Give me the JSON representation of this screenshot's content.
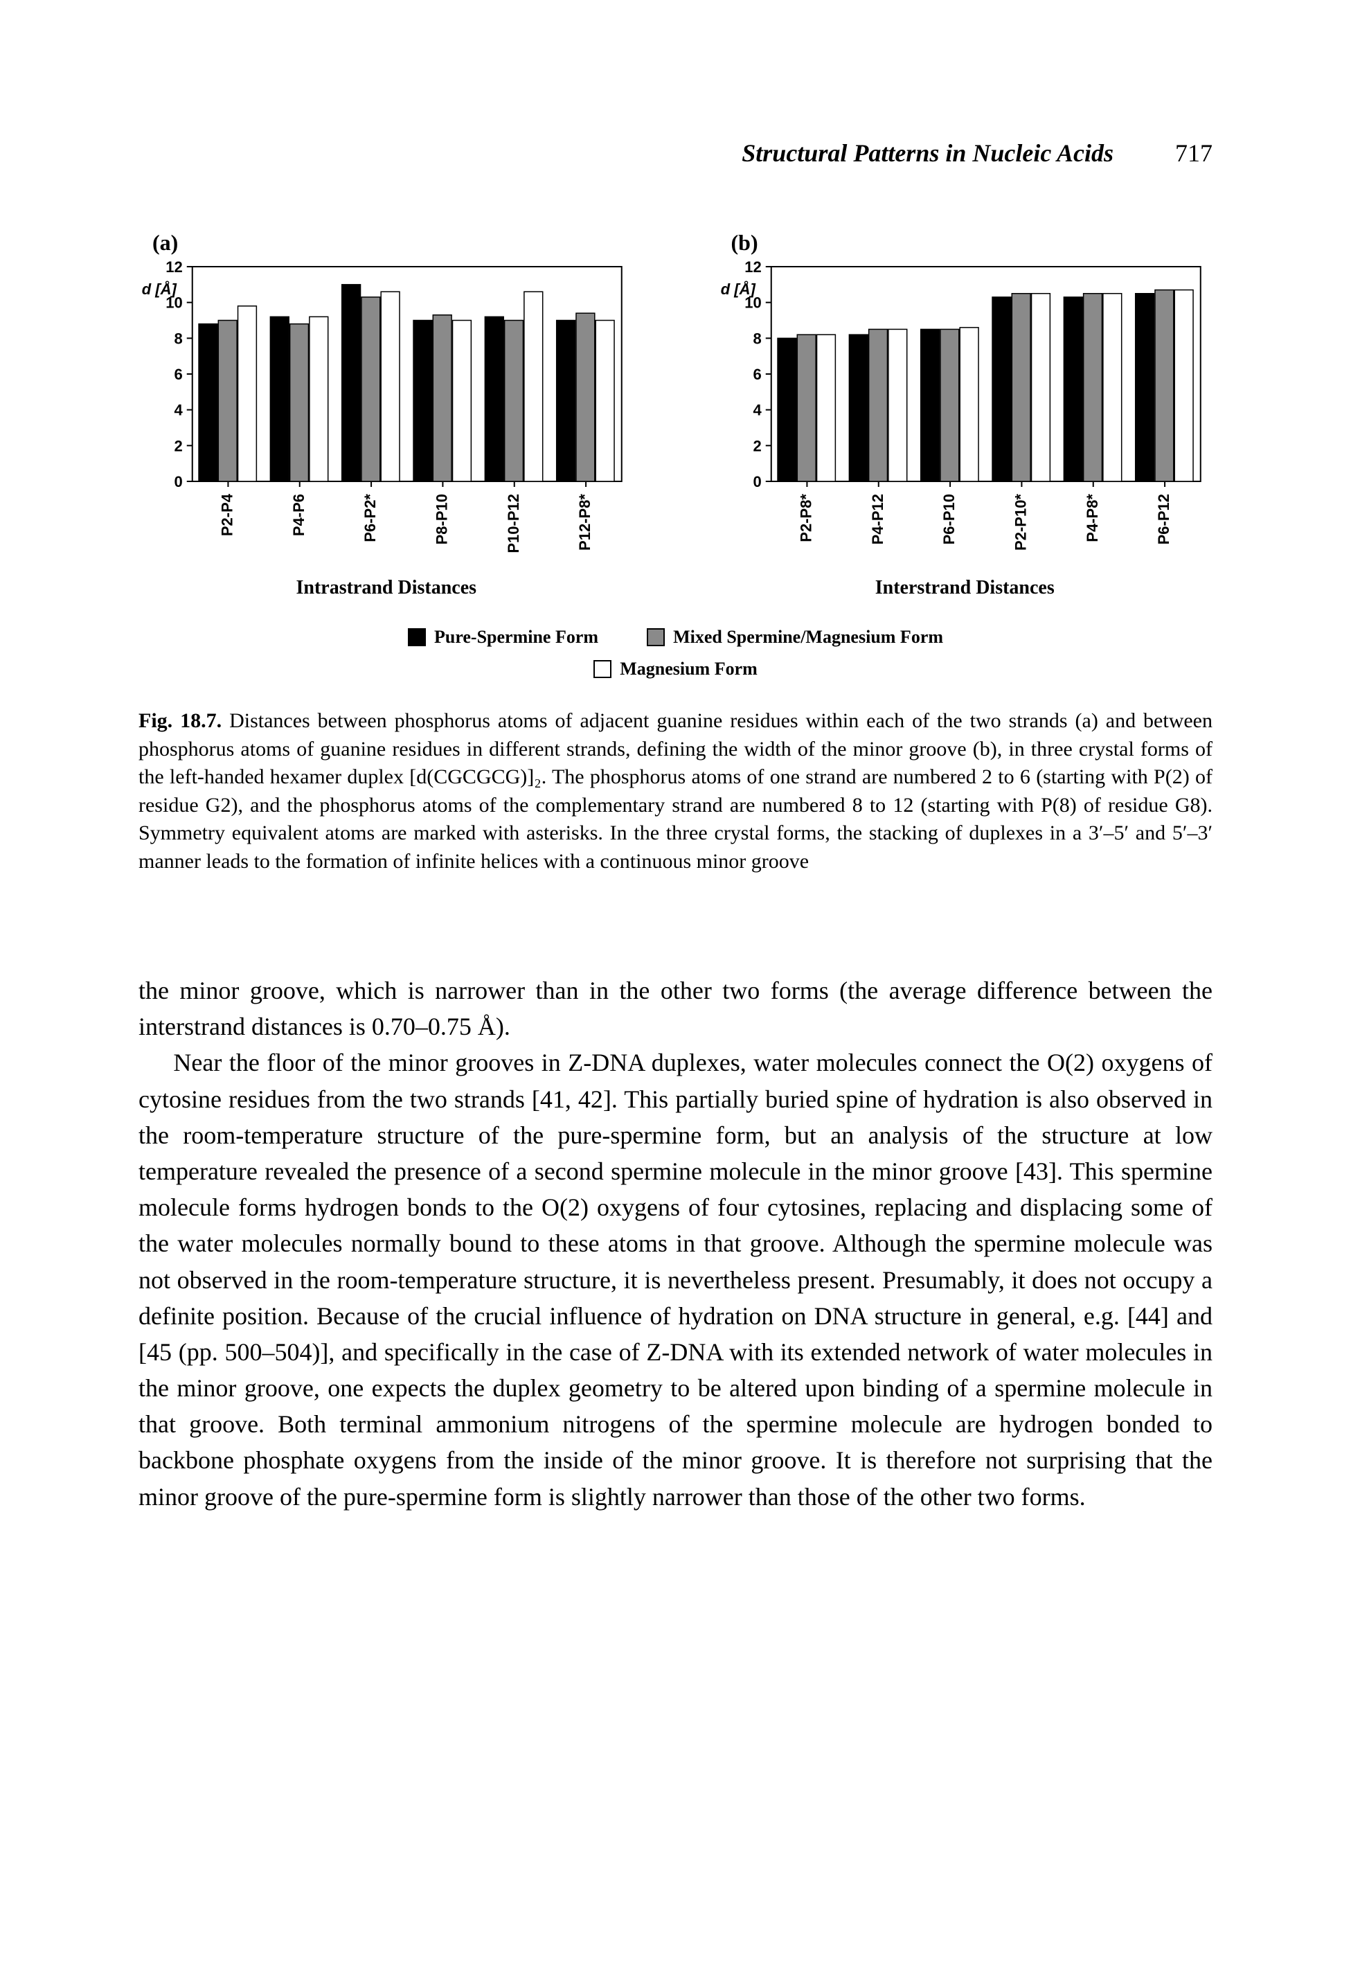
{
  "header": {
    "title": "Structural Patterns in Nucleic Acids",
    "page_number": "717"
  },
  "figure": {
    "panel_a_label": "(a)",
    "panel_b_label": "(b)",
    "y_axis_label": "d [Å]",
    "axis": {
      "ymin": 0,
      "ymax": 12,
      "ytick_step": 2,
      "tick_fontsize": 22,
      "label_fontsize": 22,
      "tick_font": "Arial",
      "axis_color": "#000000",
      "background": "#ffffff"
    },
    "series_colors": {
      "pure_spermine": "#000000",
      "mixed": "#8a8a8a",
      "magnesium": "#ffffff"
    },
    "series_border": "#000000",
    "bar_style": {
      "group_gap": 0.55,
      "bar_width": 1.0
    },
    "chart_a": {
      "type": "bar",
      "xlabel": "Intrastrand Distances",
      "categories": [
        "P2-P4",
        "P4-P6",
        "P6-P2*",
        "P8-P10",
        "P10-P12",
        "P12-P8*"
      ],
      "values": {
        "pure_spermine": [
          8.8,
          9.2,
          11.0,
          9.0,
          9.2,
          9.0
        ],
        "mixed": [
          9.0,
          8.8,
          10.3,
          9.3,
          9.0,
          9.4
        ],
        "magnesium": [
          9.8,
          9.2,
          10.6,
          9.0,
          10.6,
          9.0
        ]
      }
    },
    "chart_b": {
      "type": "bar",
      "xlabel": "Interstrand Distances",
      "categories": [
        "P2-P8*",
        "P4-P12",
        "P6-P10",
        "P2-P10*",
        "P4-P8*",
        "P6-P12"
      ],
      "values": {
        "pure_spermine": [
          8.0,
          8.2,
          8.5,
          10.3,
          10.3,
          10.5
        ],
        "mixed": [
          8.2,
          8.5,
          8.5,
          10.5,
          10.5,
          10.7
        ],
        "magnesium": [
          8.2,
          8.5,
          8.6,
          10.5,
          10.5,
          10.7
        ]
      }
    },
    "legend": {
      "pure_spermine": "Pure-Spermine Form",
      "mixed": "Mixed Spermine/Magnesium Form",
      "magnesium": "Magnesium Form"
    },
    "caption_label": "Fig. 18.7.",
    "caption_text": "Distances between phosphorus atoms of adjacent guanine residues within each of the two strands (a) and between phosphorus atoms of guanine residues in different strands, defining the width of the minor groove (b), in three crystal forms of the left-handed hexamer duplex [d(CGCGCG)]₂. The phosphorus atoms of one strand are numbered 2 to 6 (starting with P(2) of residue G2), and the phosphorus atoms of the complementary strand are numbered 8 to 12 (starting with P(8) of residue G8). Symmetry equivalent atoms are marked with asterisks. In the three crystal forms, the stacking of duplexes in a 3′–5′ and 5′–3′ manner leads to the formation of infinite helices with a continuous minor groove"
  },
  "body": {
    "para1": "the minor groove, which is narrower than in the other two forms (the average difference between the interstrand distances is 0.70–0.75 Å).",
    "para2": "Near the floor of the minor grooves in Z-DNA duplexes, water molecules connect the O(2) oxygens of cytosine residues from the two strands [41, 42]. This partially buried spine of hydration is also observed in the room-temperature structure of the pure-spermine form, but an analysis of the structure at low temperature revealed the presence of a second spermine molecule in the minor groove [43]. This spermine molecule forms hydrogen bonds to the O(2) oxygens of four cytosines, replacing and displacing some of the water molecules normally bound to these atoms in that groove. Although the spermine molecule was not observed in the room-temperature structure, it is nevertheless present. Presumably, it does not occupy a definite position. Because of the crucial influence of hydration on DNA structure in general, e.g. [44] and [45 (pp. 500–504)], and specifically in the case of Z-DNA with its extended network of water molecules in the minor groove, one expects the duplex geometry to be altered upon binding of a spermine molecule in that groove. Both terminal ammonium nitrogens of the spermine molecule are hydrogen bonded to backbone phosphate oxygens from the inside of the minor groove. It is therefore not surprising that the minor groove of the pure-spermine form is slightly narrower than those of the other two forms."
  }
}
